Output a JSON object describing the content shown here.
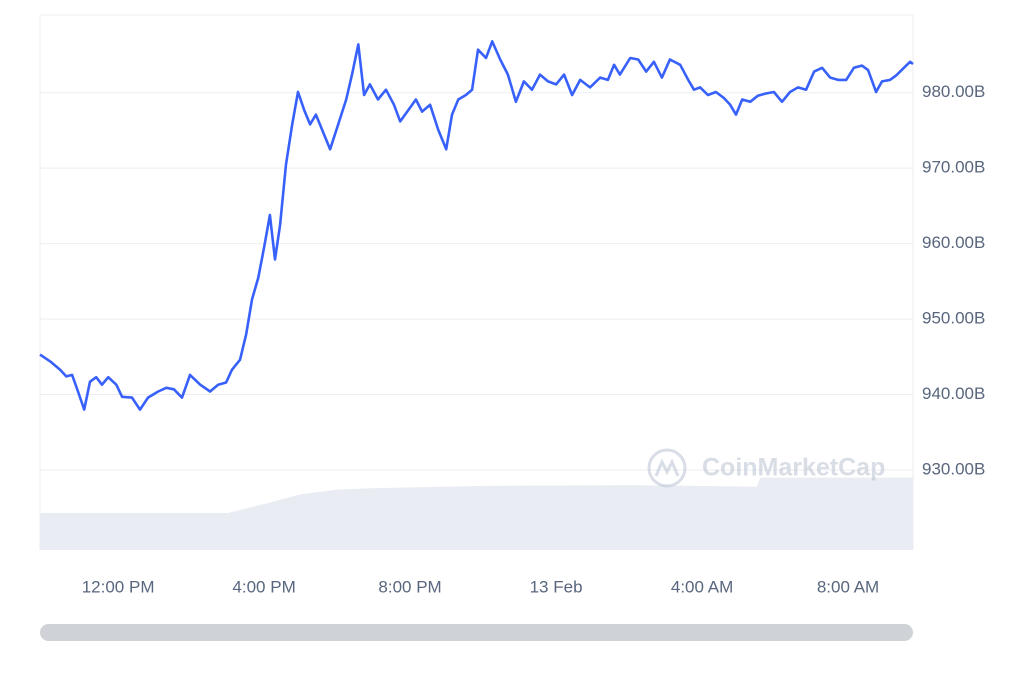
{
  "chart_data": {
    "type": "line",
    "watermark": "CoinMarketCap",
    "x": [
      9.86,
      10.14,
      10.41,
      10.58,
      10.74,
      10.9,
      11.07,
      11.23,
      11.4,
      11.56,
      11.73,
      11.95,
      12.11,
      12.38,
      12.6,
      12.82,
      13.1,
      13.32,
      13.53,
      13.75,
      13.97,
      14.25,
      14.52,
      14.74,
      14.96,
      15.12,
      15.34,
      15.51,
      15.67,
      15.84,
      16.0,
      16.16,
      16.3,
      16.44,
      16.6,
      16.77,
      16.93,
      17.1,
      17.26,
      17.42,
      17.59,
      17.81,
      18.03,
      18.25,
      18.41,
      18.58,
      18.74,
      18.9,
      19.12,
      19.34,
      19.56,
      19.73,
      19.95,
      20.16,
      20.33,
      20.55,
      20.77,
      20.99,
      21.15,
      21.32,
      21.53,
      21.7,
      21.86,
      22.08,
      22.25,
      22.47,
      22.68,
      22.9,
      23.12,
      23.34,
      23.56,
      23.78,
      24.0,
      24.22,
      24.44,
      24.66,
      24.93,
      25.21,
      25.42,
      25.59,
      25.75,
      26.03,
      26.25,
      26.47,
      26.68,
      26.9,
      27.12,
      27.4,
      27.62,
      27.78,
      27.95,
      28.16,
      28.38,
      28.6,
      28.77,
      28.93,
      29.1,
      29.32,
      29.53,
      29.75,
      29.97,
      30.19,
      30.41,
      30.63,
      30.85,
      31.07,
      31.29,
      31.51,
      31.73,
      31.95,
      32.16,
      32.38,
      32.55,
      32.77,
      32.93,
      33.15,
      33.32,
      33.53,
      33.7,
      33.78
    ],
    "series": [
      {
        "color": "#3861fb",
        "values": [
          945.3,
          944.4,
          943.3,
          942.4,
          942.6,
          940.4,
          938.0,
          941.7,
          942.3,
          941.3,
          942.3,
          941.3,
          939.7,
          939.6,
          938.0,
          939.6,
          940.4,
          940.9,
          940.7,
          939.6,
          942.6,
          941.3,
          940.4,
          941.3,
          941.6,
          943.3,
          944.6,
          948.0,
          952.6,
          955.5,
          959.5,
          963.8,
          957.9,
          962.5,
          970.5,
          975.8,
          980.1,
          977.7,
          975.8,
          977.1,
          975.1,
          972.5,
          975.8,
          979.1,
          982.4,
          986.4,
          979.7,
          981.1,
          979.1,
          980.4,
          978.4,
          976.2,
          977.7,
          979.1,
          977.5,
          978.4,
          975.1,
          972.5,
          977.1,
          979.1,
          979.7,
          980.4,
          985.7,
          984.6,
          986.8,
          984.4,
          982.4,
          978.8,
          981.5,
          980.4,
          982.4,
          981.5,
          981.1,
          982.4,
          979.7,
          981.7,
          980.7,
          982.0,
          981.7,
          983.7,
          982.4,
          984.6,
          984.4,
          982.8,
          984.1,
          982.0,
          984.4,
          983.7,
          981.7,
          980.4,
          980.7,
          979.7,
          980.1,
          979.3,
          978.4,
          977.1,
          979.1,
          978.8,
          979.6,
          979.9,
          980.1,
          978.8,
          980.1,
          980.7,
          980.4,
          982.8,
          983.3,
          982.0,
          981.7,
          981.7,
          983.3,
          983.6,
          983.0,
          980.1,
          981.5,
          981.7,
          982.3,
          983.3,
          984.1,
          983.8
        ]
      }
    ],
    "volume": {
      "color": "#e9edf3",
      "x": [
        9.86,
        15.0,
        16.0,
        17.0,
        18.0,
        19.0,
        22.0,
        26.0,
        29.5,
        29.6,
        33.78
      ],
      "values": [
        924.3,
        924.3,
        925.5,
        926.8,
        927.4,
        927.6,
        927.9,
        928.0,
        927.8,
        929.0,
        929.0
      ]
    },
    "xlim": [
      9.86,
      33.78
    ],
    "ylim": [
      919.4,
      990.3
    ],
    "xticks": [
      {
        "value": 12,
        "label": "12:00 PM"
      },
      {
        "value": 16,
        "label": "4:00 PM"
      },
      {
        "value": 20,
        "label": "8:00 PM"
      },
      {
        "value": 24,
        "label": "13 Feb"
      },
      {
        "value": 28,
        "label": "4:00 AM"
      },
      {
        "value": 32,
        "label": "8:00 AM"
      }
    ],
    "yticks": [
      {
        "value": 930,
        "label": "930.00B"
      },
      {
        "value": 940,
        "label": "940.00B"
      },
      {
        "value": 950,
        "label": "950.00B"
      },
      {
        "value": 960,
        "label": "960.00B"
      },
      {
        "value": 970,
        "label": "970.00B"
      },
      {
        "value": 980,
        "label": "980.00B"
      }
    ],
    "grid": true
  }
}
